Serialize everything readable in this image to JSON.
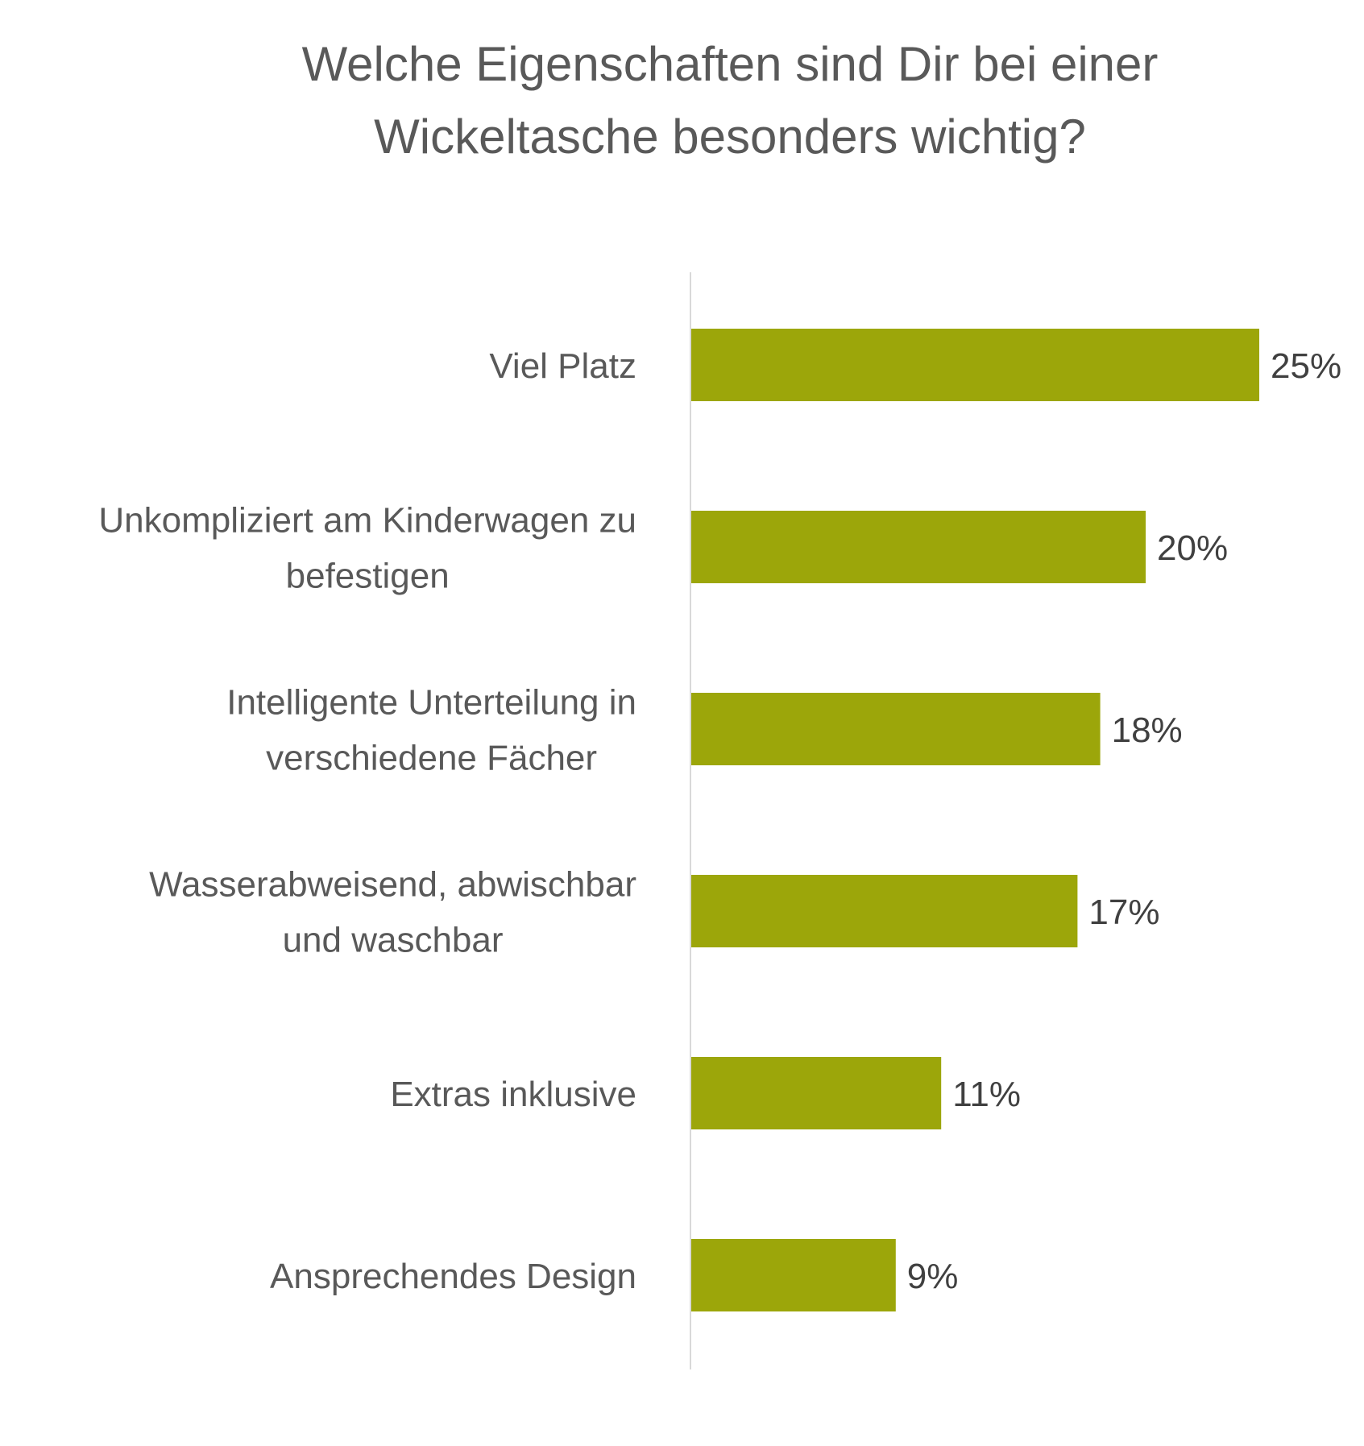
{
  "chart_data": {
    "type": "bar",
    "orientation": "horizontal",
    "title_lines": [
      "Welche Eigenschaften sind Dir bei einer",
      "Wickeltasche besonders wichtig?"
    ],
    "categories": [
      [
        "Viel Platz"
      ],
      [
        "Unkompliziert am Kinderwagen zu",
        "befestigen"
      ],
      [
        "Intelligente Unterteilung in",
        "verschiedene Fächer"
      ],
      [
        "Wasserabweisend, abwischbar",
        "und waschbar"
      ],
      [
        "Extras inklusive"
      ],
      [
        "Ansprechendes Design"
      ]
    ],
    "values": [
      25,
      20,
      18,
      17,
      11,
      9
    ],
    "value_labels": [
      "25%",
      "20%",
      "18%",
      "17%",
      "11%",
      "9%"
    ],
    "value_unit": "%",
    "bar_color": "#9CA60A",
    "axis_color": "#D9D9D9",
    "grid": false,
    "legend": false
  }
}
